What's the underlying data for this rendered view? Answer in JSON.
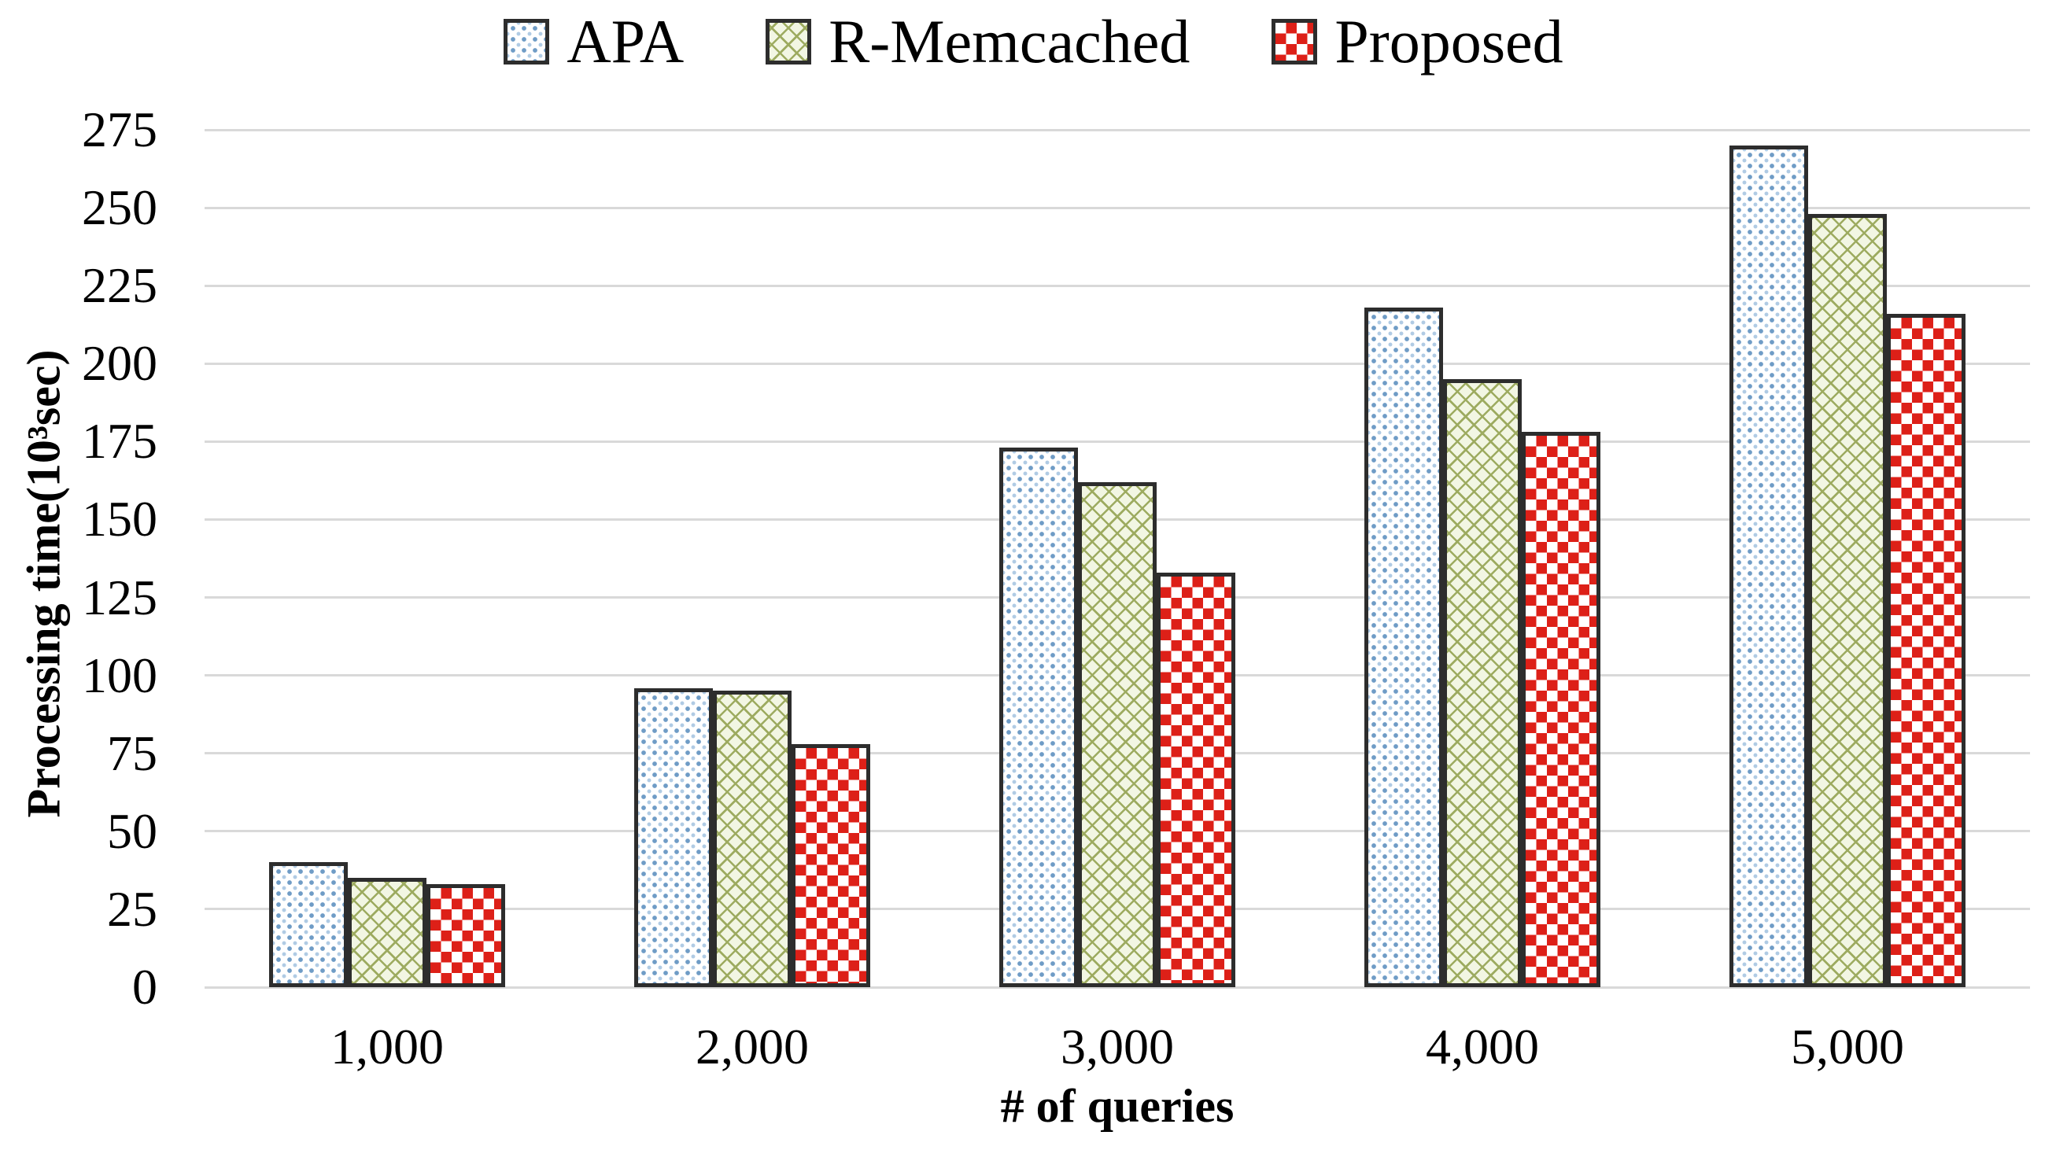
{
  "page": {
    "background": "#ffffff"
  },
  "chart_data": {
    "type": "bar",
    "title": "",
    "categories": [
      "1,000",
      "2,000",
      "3,000",
      "4,000",
      "5,000"
    ],
    "series": [
      {
        "name": "APA",
        "pattern": "blue-dots",
        "values": [
          40,
          96,
          173,
          218,
          270
        ]
      },
      {
        "name": "R-Memcached",
        "pattern": "green-hatch",
        "values": [
          35,
          95,
          162,
          195,
          248
        ]
      },
      {
        "name": "Proposed",
        "pattern": "red-checker",
        "values": [
          33,
          78,
          133,
          178,
          216
        ]
      }
    ],
    "xlabel": "# of queries",
    "ylabel": "Processing time(10³sec)",
    "ylim": [
      0,
      275
    ],
    "ytick_step": 25,
    "yticks": [
      0,
      25,
      50,
      75,
      100,
      125,
      150,
      175,
      200,
      225,
      250,
      275
    ],
    "grid": true,
    "legend_position": "top-center",
    "colors": {
      "apa_dot_dark": "#6f9cc6",
      "apa_dot_light": "#b0cbe4",
      "green_line": "#9dab60",
      "green_bg": "#f2f6e3",
      "red": "#dd2018",
      "bar_border": "#2d2d2d",
      "gridline": "#d9d9d9",
      "text": "#000000",
      "background": "#ffffff"
    }
  }
}
